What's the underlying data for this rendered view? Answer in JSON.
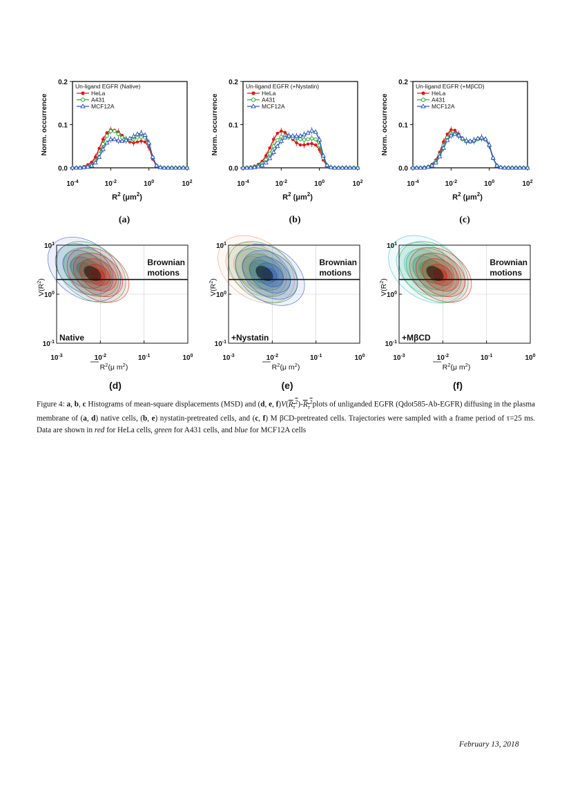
{
  "histograms": [
    {
      "label": "(a)",
      "legend_title": "Un-ligand EGFR (Native)"
    },
    {
      "label": "(b)",
      "legend_title": "Un-ligand EGFR (+Nystatin)"
    },
    {
      "label": "(c)",
      "legend_title": "Un-ligand EGFR (+MβCD)"
    }
  ],
  "histogram_axes": {
    "ylabel": "Norm. occurrence",
    "xlabel": "R",
    "xlabel_sup": "2",
    "xlabel_unit_pre": " (μm",
    "xlabel_unit_sup": "2",
    "xlabel_unit_post": ")",
    "yticks": [
      "0.0",
      "0.1",
      "0.2"
    ],
    "xtick_base": "10",
    "xtick_exps": [
      "-4",
      "-2",
      "0",
      "2"
    ]
  },
  "series_names": [
    "HeLa",
    "A431",
    "MCF12A"
  ],
  "colors": {
    "hela": "#e01818",
    "a431": "#2fa83a",
    "mcf": "#2f55c8"
  },
  "contours": [
    {
      "label": "(d)",
      "condition": "Native"
    },
    {
      "label": "(e)",
      "condition": "+Nystatin"
    },
    {
      "label": "(f)",
      "condition": "+MβCD"
    }
  ],
  "contour_axes": {
    "ylabel": "V(R",
    "ylabel_sup": "2",
    "ylabel_post": ")",
    "xlabel": "R",
    "xlabel_sup": "2",
    "xlabel_unit": "(μ m",
    "xlabel_unit_sup": "2",
    "xlabel_post": ")",
    "brownian_1": "Brownian",
    "brownian_2": "motions",
    "ytick_base": "10",
    "ytick_exps": [
      "1",
      "0",
      "-1"
    ],
    "xtick_exps": [
      "-3",
      "-2",
      "-1",
      "0"
    ]
  },
  "chart_data": [
    {
      "type": "line",
      "panel": "(a)",
      "title": "Un-ligand EGFR (Native)",
      "xlabel": "R2 (μm2)",
      "ylabel": "Norm. occurrence",
      "xscale": "log",
      "xlim": [
        0.0001,
        100
      ],
      "ylim": [
        0,
        0.2
      ],
      "legend": "top-left",
      "x": [
        0.0001,
        0.000158,
        0.000251,
        0.000398,
        0.000631,
        0.001,
        0.00158,
        0.00251,
        0.00398,
        0.00631,
        0.01,
        0.0158,
        0.0251,
        0.0398,
        0.0631,
        0.1,
        0.158,
        0.251,
        0.398,
        0.631,
        1,
        1.58,
        2.51,
        3.98,
        6.31,
        10,
        15.8,
        25.1,
        39.8,
        63.1,
        100
      ],
      "series": [
        {
          "name": "HeLa",
          "values": [
            0,
            0,
            0.001,
            0.003,
            0.007,
            0.013,
            0.025,
            0.045,
            0.066,
            0.081,
            0.088,
            0.087,
            0.083,
            0.075,
            0.066,
            0.06,
            0.058,
            0.06,
            0.062,
            0.06,
            0.048,
            0.02,
            0.004,
            0.001,
            0,
            0,
            0,
            0,
            0,
            0,
            0
          ]
        },
        {
          "name": "A431",
          "values": [
            0,
            0,
            0,
            0.001,
            0.003,
            0.007,
            0.016,
            0.032,
            0.055,
            0.074,
            0.085,
            0.085,
            0.078,
            0.07,
            0.066,
            0.065,
            0.066,
            0.07,
            0.072,
            0.07,
            0.055,
            0.024,
            0.005,
            0.001,
            0,
            0,
            0,
            0,
            0,
            0,
            0
          ]
        },
        {
          "name": "MCF12A",
          "values": [
            0,
            0,
            0,
            0.001,
            0.002,
            0.005,
            0.012,
            0.025,
            0.043,
            0.058,
            0.066,
            0.066,
            0.063,
            0.062,
            0.064,
            0.068,
            0.073,
            0.078,
            0.08,
            0.076,
            0.058,
            0.025,
            0.005,
            0.001,
            0,
            0,
            0,
            0,
            0,
            0,
            0
          ]
        }
      ]
    },
    {
      "type": "line",
      "panel": "(b)",
      "title": "Un-ligand EGFR (+Nystatin)",
      "xlabel": "R2 (μm2)",
      "ylabel": "Norm. occurrence",
      "xscale": "log",
      "xlim": [
        0.0001,
        100
      ],
      "ylim": [
        0,
        0.2
      ],
      "legend": "top-left",
      "x": [
        0.0001,
        0.000158,
        0.000251,
        0.000398,
        0.000631,
        0.001,
        0.00158,
        0.00251,
        0.00398,
        0.00631,
        0.01,
        0.0158,
        0.0251,
        0.0398,
        0.0631,
        0.1,
        0.158,
        0.251,
        0.398,
        0.631,
        1,
        1.58,
        2.51,
        3.98,
        6.31,
        10,
        15.8,
        25.1,
        39.8,
        63.1,
        100
      ],
      "series": [
        {
          "name": "HeLa",
          "values": [
            0,
            0.001,
            0.002,
            0.004,
            0.008,
            0.015,
            0.028,
            0.046,
            0.066,
            0.08,
            0.085,
            0.082,
            0.074,
            0.066,
            0.058,
            0.053,
            0.053,
            0.055,
            0.056,
            0.053,
            0.042,
            0.018,
            0.004,
            0.001,
            0,
            0,
            0,
            0,
            0,
            0,
            0
          ]
        },
        {
          "name": "A431",
          "values": [
            0,
            0,
            0.001,
            0.002,
            0.005,
            0.01,
            0.019,
            0.033,
            0.05,
            0.064,
            0.072,
            0.074,
            0.072,
            0.07,
            0.068,
            0.066,
            0.065,
            0.066,
            0.068,
            0.066,
            0.052,
            0.023,
            0.005,
            0.001,
            0,
            0,
            0,
            0,
            0,
            0,
            0
          ]
        },
        {
          "name": "MCF12A",
          "values": [
            0,
            0,
            0,
            0.001,
            0.003,
            0.006,
            0.012,
            0.022,
            0.036,
            0.05,
            0.062,
            0.07,
            0.074,
            0.074,
            0.073,
            0.074,
            0.077,
            0.081,
            0.086,
            0.083,
            0.065,
            0.028,
            0.006,
            0.001,
            0,
            0,
            0,
            0,
            0,
            0,
            0
          ]
        }
      ]
    },
    {
      "type": "line",
      "panel": "(c)",
      "title": "Un-ligand EGFR (+MβCD)",
      "xlabel": "R2 (μm2)",
      "ylabel": "Norm. occurrence",
      "xscale": "log",
      "xlim": [
        0.0001,
        100
      ],
      "ylim": [
        0,
        0.2
      ],
      "legend": "top-left",
      "x": [
        0.0001,
        0.000158,
        0.000251,
        0.000398,
        0.000631,
        0.001,
        0.00158,
        0.00251,
        0.00398,
        0.00631,
        0.01,
        0.0158,
        0.0251,
        0.0398,
        0.0631,
        0.1,
        0.158,
        0.251,
        0.398,
        0.631,
        1,
        1.58,
        2.51,
        3.98,
        6.31,
        10,
        15.8,
        25.1,
        39.8,
        63.1,
        100
      ],
      "series": [
        {
          "name": "HeLa",
          "values": [
            0,
            0,
            0,
            0.001,
            0.003,
            0.008,
            0.018,
            0.036,
            0.06,
            0.078,
            0.088,
            0.087,
            0.078,
            0.068,
            0.062,
            0.06,
            0.063,
            0.068,
            0.07,
            0.066,
            0.052,
            0.022,
            0.005,
            0.001,
            0,
            0,
            0,
            0,
            0,
            0,
            0
          ]
        },
        {
          "name": "A431",
          "values": [
            0,
            0,
            0,
            0.001,
            0.002,
            0.006,
            0.015,
            0.03,
            0.052,
            0.07,
            0.08,
            0.08,
            0.074,
            0.066,
            0.061,
            0.06,
            0.062,
            0.066,
            0.068,
            0.065,
            0.051,
            0.022,
            0.005,
            0.001,
            0,
            0,
            0,
            0,
            0,
            0,
            0
          ]
        },
        {
          "name": "MCF12A",
          "values": [
            0,
            0,
            0,
            0,
            0.002,
            0.005,
            0.012,
            0.026,
            0.046,
            0.064,
            0.075,
            0.078,
            0.075,
            0.068,
            0.063,
            0.062,
            0.064,
            0.068,
            0.07,
            0.067,
            0.053,
            0.023,
            0.005,
            0.001,
            0,
            0,
            0,
            0,
            0,
            0,
            0
          ]
        }
      ]
    }
  ],
  "caption": {
    "figure_label": "Figure 4:",
    "line1_a": "a",
    "line1_b": "b",
    "line1_c": "c",
    "line1_text": "Histograms of mean-square displacements (MSD) and (",
    "line1_d": "d",
    "line1_e": "e",
    "line1_f": "f",
    "line1_end": "plots of unliganded EGFR",
    "line2": "(Qdot585-Ab-EGFR) diffusing in the plasma membrane of (",
    "line2_b": "native cells, (",
    "line2_c": "nystatin-pretreated cells, and (",
    "line3": "M βCD-pretreated cells. Trajectories were sampled with a frame period of τ=25 ms. Data are shown in",
    "red": "red",
    "line3_end": "for HeLa",
    "line4_a": "cells,",
    "green": "green",
    "line4_b": "for A431 cells, and",
    "blue": "blue",
    "line4_c": "for MCF12A cells"
  },
  "footer": "February 13, 2018"
}
